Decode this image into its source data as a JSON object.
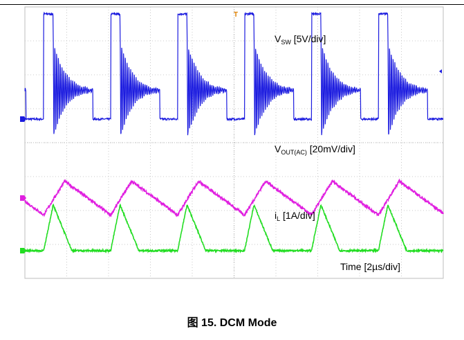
{
  "caption": "图 15. DCM Mode",
  "chart_data": {
    "type": "line",
    "title": "",
    "xlabel": "Time [2µs/div]",
    "x_unit": "µs",
    "x_per_div": 2,
    "xlim": [
      0,
      20
    ],
    "grid": true,
    "grid_divisions": {
      "x": 10,
      "y": 8
    },
    "trigger_marker": "T",
    "series": [
      {
        "name": "VSW",
        "label_main": "V",
        "label_sub": "SW",
        "label_rest": " [5V/div]",
        "color": "#1a1adf",
        "scale_per_div": 5,
        "unit": "V",
        "behavior": "switch node: high pulse then ringing decaying to input level, then low",
        "period_us": 3.2,
        "high_pulse_us": 0.45,
        "ringing_us": 1.9,
        "levels_div": {
          "low": 0,
          "high": 3.1,
          "ring_settle": 0.85
        },
        "first_rise_us": 0.9
      },
      {
        "name": "VOUT(AC)",
        "label_main": "V",
        "label_sub": "OUT(AC)",
        "label_rest": " [20mV/div]",
        "color": "#e020e0",
        "scale_per_div": 20,
        "unit": "mV",
        "behavior": "output ripple triangle",
        "period_us": 3.2,
        "amplitude_div": 0.5,
        "first_peak_us": 0.9
      },
      {
        "name": "iL",
        "label_main": "i",
        "label_sub": "L",
        "label_rest": " [1A/div]",
        "color": "#22dd22",
        "scale_per_div": 1,
        "unit": "A",
        "behavior": "inductor current triangle pulses with zero-current interval",
        "period_us": 3.2,
        "peak_div": 1.35,
        "rise_us": 0.45,
        "fall_us": 0.9,
        "first_rise_us": 0.9
      }
    ]
  }
}
